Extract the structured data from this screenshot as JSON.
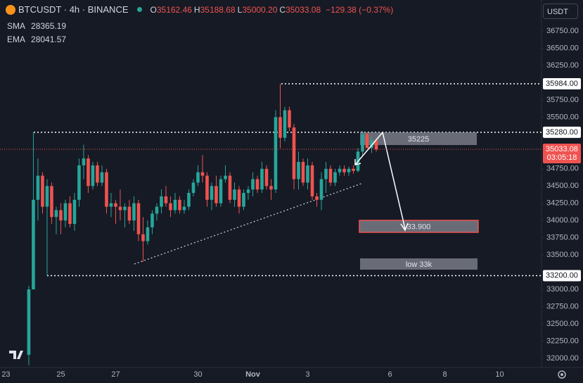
{
  "chart_data": {
    "type": "candlestick",
    "symbol": "BTCUSDT · 4h · BINANCE",
    "readout": [
      {
        "key": "O",
        "value": "35162.46"
      },
      {
        "key": "H",
        "value": "35188.68"
      },
      {
        "key": "L",
        "value": "35000.20"
      },
      {
        "key": "C",
        "value": "35033.08"
      }
    ],
    "change": "−129.38 (−0.37%)",
    "indicators": [
      {
        "name": "SMA",
        "value": "28365.19"
      },
      {
        "name": "EMA",
        "value": "28041.57"
      }
    ],
    "currency": "USDT",
    "up_color": "#26a69a",
    "down_color": "#ef5350",
    "grid": false,
    "open": [
      32050,
      33000,
      34300,
      34650,
      34200,
      34500,
      34050,
      34150,
      34000,
      34250,
      33950,
      34300,
      34800,
      34900,
      34500,
      34800,
      34550,
      34700,
      34200,
      34250,
      34200,
      34150,
      34200,
      34000,
      34250,
      33800,
      33700,
      33900,
      34100,
      34200,
      34350,
      34250,
      34150,
      34300,
      34150,
      34200,
      34400,
      34550,
      34700,
      34650,
      34300,
      34500,
      34250,
      34600,
      34650,
      34300,
      34450,
      34200,
      34400,
      34450,
      34600,
      34450,
      34750,
      34500,
      34450,
      35500,
      35200,
      35600,
      35350,
      34600,
      34850,
      34550,
      34800,
      34350,
      34300,
      34600,
      34750,
      34550,
      34700,
      34750,
      34700,
      34750,
      34720,
      35000,
      35250,
      35050,
      35162.46
    ],
    "high": [
      33050,
      35280,
      34900,
      34700,
      34600,
      34550,
      34200,
      34250,
      34300,
      34350,
      34400,
      34900,
      35100,
      34950,
      34850,
      34850,
      34800,
      34750,
      34400,
      34300,
      34450,
      34250,
      34300,
      34350,
      34300,
      34050,
      34000,
      34150,
      34250,
      34450,
      34500,
      34350,
      34400,
      34350,
      34300,
      34450,
      34600,
      34800,
      34950,
      34700,
      34550,
      34650,
      34650,
      34800,
      34700,
      34550,
      34500,
      34450,
      34500,
      34700,
      34650,
      34850,
      34800,
      34600,
      35600,
      35984,
      35650,
      35650,
      35400,
      35000,
      34900,
      34900,
      34850,
      34400,
      34700,
      34850,
      34800,
      34750,
      34800,
      34800,
      34780,
      34800,
      35050,
      35300,
      35280,
      35220,
      35188.68
    ],
    "low": [
      31900,
      33000,
      34000,
      34100,
      33200,
      33950,
      33800,
      33800,
      33900,
      33900,
      33850,
      34200,
      34600,
      34400,
      34450,
      34500,
      34500,
      34100,
      34050,
      33950,
      34000,
      33900,
      33950,
      33850,
      33700,
      33400,
      33650,
      33800,
      34000,
      34100,
      34200,
      34050,
      34100,
      34100,
      34100,
      34150,
      34350,
      34500,
      34550,
      34200,
      34150,
      34200,
      34200,
      34550,
      34250,
      34200,
      34100,
      34150,
      34300,
      34350,
      34400,
      34400,
      34450,
      34300,
      34400,
      35050,
      35150,
      35300,
      34450,
      34450,
      34500,
      34450,
      34300,
      34200,
      34150,
      34400,
      34500,
      34500,
      34650,
      34650,
      34650,
      34680,
      34700,
      34950,
      35050,
      34980,
      35000.2
    ],
    "close": [
      33000,
      34300,
      34650,
      34200,
      34500,
      34050,
      34150,
      34000,
      34250,
      33950,
      34300,
      34800,
      34900,
      34500,
      34800,
      34550,
      34700,
      34200,
      34250,
      34200,
      34150,
      34200,
      34000,
      34250,
      33800,
      33700,
      33900,
      34100,
      34200,
      34350,
      34250,
      34150,
      34300,
      34150,
      34200,
      34400,
      34550,
      34700,
      34650,
      34300,
      34500,
      34250,
      34600,
      34650,
      34300,
      34450,
      34200,
      34400,
      34450,
      34600,
      34450,
      34750,
      34500,
      34450,
      35500,
      35200,
      35600,
      35350,
      34600,
      34850,
      34550,
      34800,
      34350,
      34300,
      34600,
      34750,
      34550,
      34700,
      34750,
      34700,
      34750,
      34720,
      35000,
      35250,
      35050,
      35162.46,
      35033.08
    ],
    "xlim": [
      -6.3,
      112.15
    ],
    "xticks": [
      {
        "value": -5,
        "label": "23"
      },
      {
        "value": 7,
        "label": "25"
      },
      {
        "value": 19,
        "label": "27"
      },
      {
        "value": 37,
        "label": "30"
      },
      {
        "value": 49,
        "label": "Nov"
      },
      {
        "value": 61,
        "label": "3"
      },
      {
        "value": 79,
        "label": "6"
      },
      {
        "value": 91,
        "label": "8"
      },
      {
        "value": 103,
        "label": "10"
      }
    ],
    "ylim": [
      31866,
      37200
    ],
    "yticks": [
      {
        "value": 36750,
        "label": "36750.00"
      },
      {
        "value": 36500,
        "label": "36500.00"
      },
      {
        "value": 36250,
        "label": "36250.00"
      },
      {
        "value": 35750,
        "label": "35750.00"
      },
      {
        "value": 35500,
        "label": "35500.00"
      },
      {
        "value": 34750,
        "label": "34750.00"
      },
      {
        "value": 34500,
        "label": "34500.00"
      },
      {
        "value": 34250,
        "label": "34250.00"
      },
      {
        "value": 34000,
        "label": "34000.00"
      },
      {
        "value": 33750,
        "label": "33750.00"
      },
      {
        "value": 33500,
        "label": "33500.00"
      },
      {
        "value": 33000,
        "label": "33000.00"
      },
      {
        "value": 32750,
        "label": "32750.00"
      },
      {
        "value": 32500,
        "label": "32500.00"
      },
      {
        "value": 32250,
        "label": "32250.00"
      },
      {
        "value": 32000,
        "label": "32000.00"
      }
    ],
    "levels": [
      {
        "value": 35984,
        "label": "35984.00"
      },
      {
        "value": 35280,
        "label": "35280.00"
      },
      {
        "value": 33200,
        "label": "33200.00"
      }
    ],
    "last_price": {
      "value": 35033.08,
      "label": "35033.08",
      "countdown": "03:05:18"
    },
    "annotations": [
      "35225",
      "33.900",
      "low 33k"
    ]
  }
}
